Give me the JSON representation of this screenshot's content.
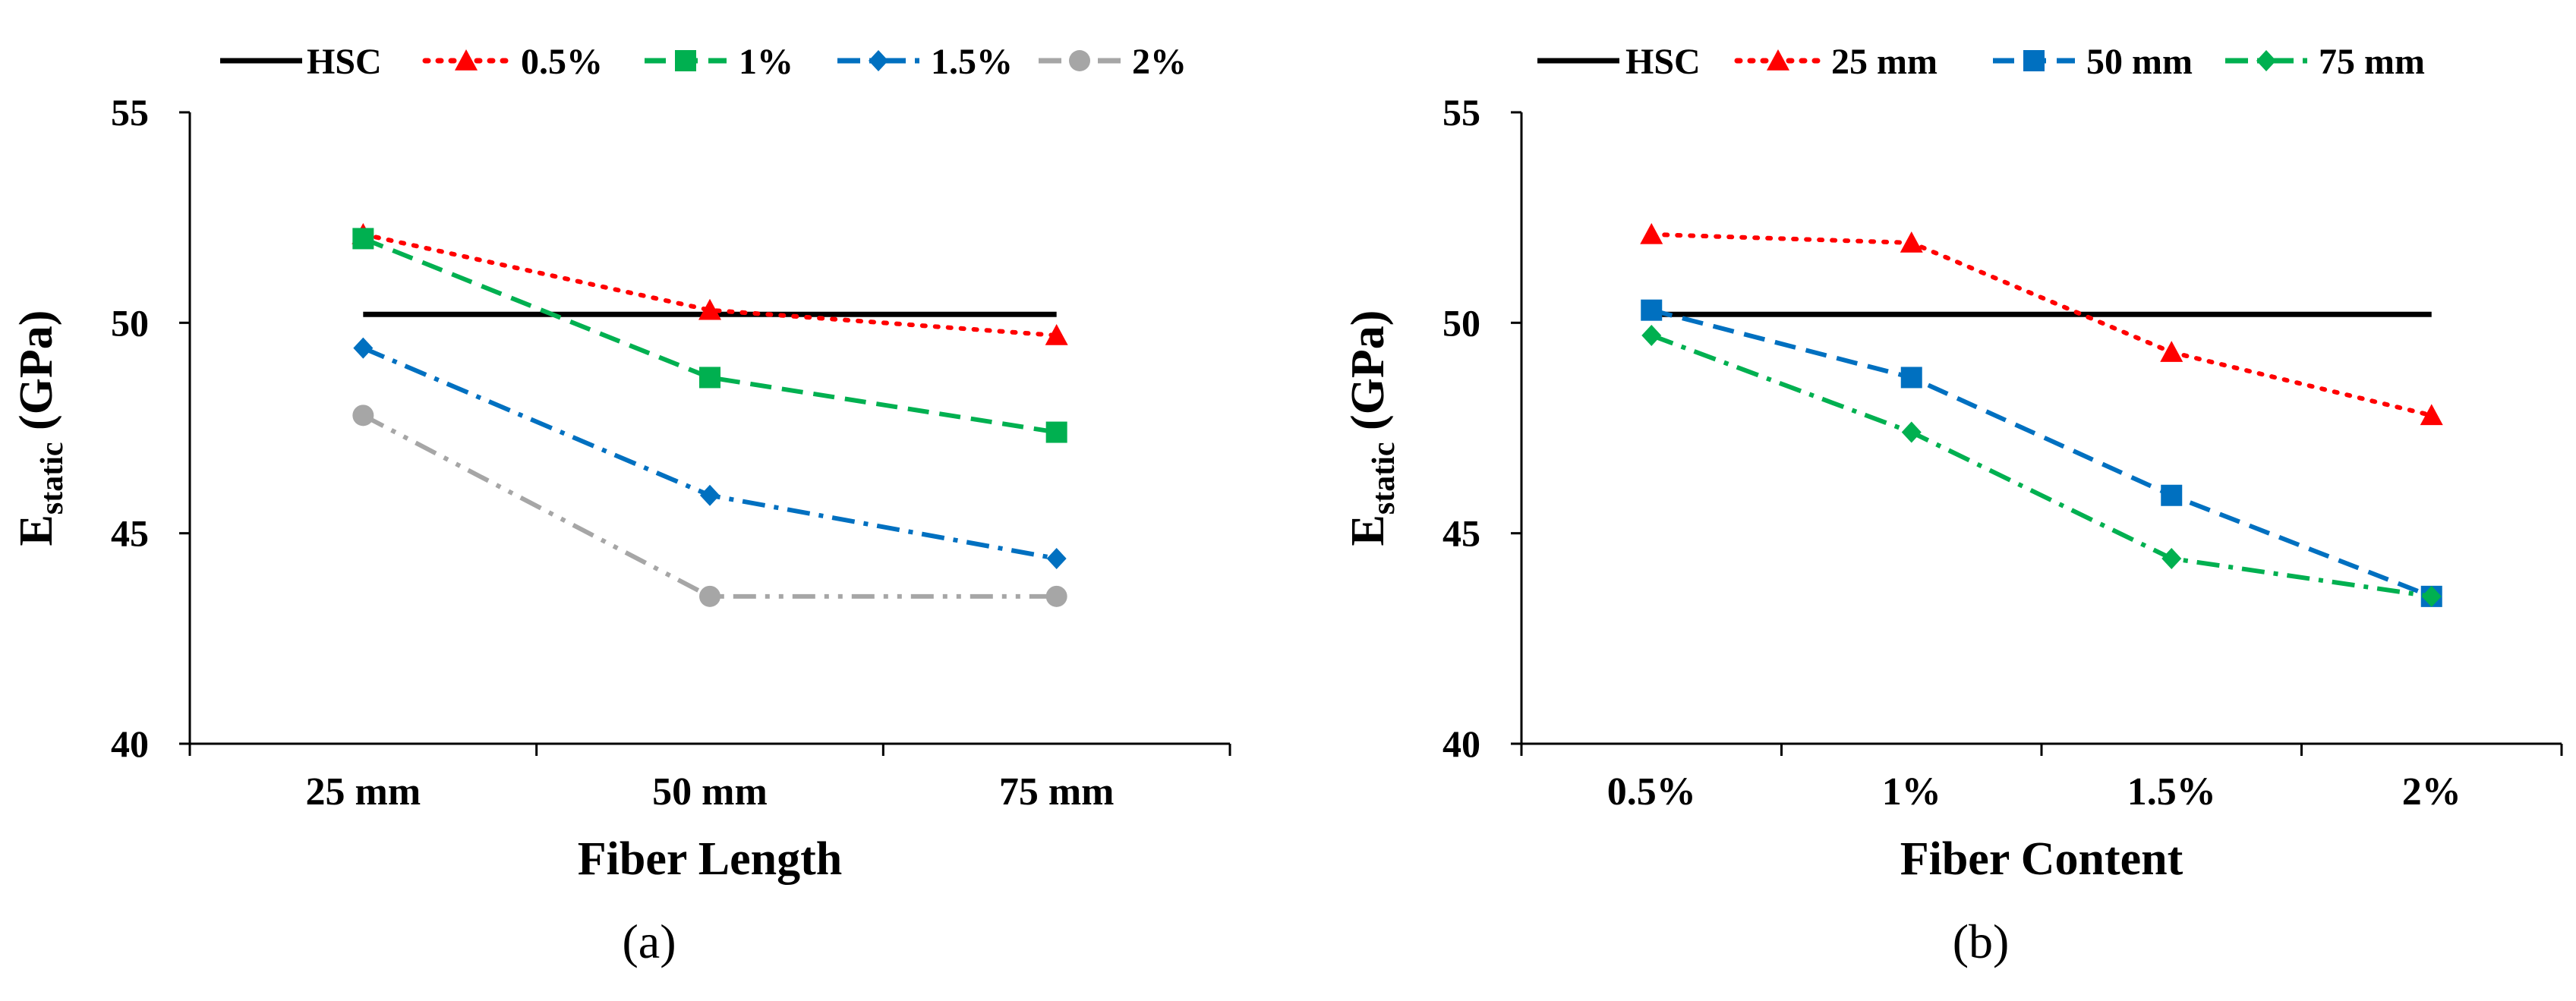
{
  "chart_data": [
    {
      "type": "line",
      "panel_label": "(a)",
      "xlabel": "Fiber Length",
      "ylabel_main": "E",
      "ylabel_sub": "static",
      "ylabel_unit": " (GPa)",
      "categories": [
        "25 mm",
        "50 mm",
        "75 mm"
      ],
      "ylim": [
        40,
        55
      ],
      "yticks": [
        40,
        45,
        50,
        55
      ],
      "legend": "top",
      "series": [
        {
          "name": "HSC",
          "values": [
            50.2,
            50.2,
            50.2
          ],
          "color": "#000000",
          "dash": "solid",
          "marker": "none"
        },
        {
          "name": "0.5%",
          "values": [
            52.1,
            50.3,
            49.7
          ],
          "color": "#ff0000",
          "dash": "dot",
          "marker": "triangle"
        },
        {
          "name": "1%",
          "values": [
            52.0,
            48.7,
            47.4
          ],
          "color": "#00b050",
          "dash": "dash",
          "marker": "square"
        },
        {
          "name": "1.5%",
          "values": [
            49.4,
            45.9,
            44.4
          ],
          "color": "#0070c0",
          "dash": "dashdot",
          "marker": "diamond"
        },
        {
          "name": "2%",
          "values": [
            47.8,
            43.5,
            43.5
          ],
          "color": "#a6a6a6",
          "dash": "dashdotdot",
          "marker": "circle"
        }
      ]
    },
    {
      "type": "line",
      "panel_label": "(b)",
      "xlabel": "Fiber Content",
      "ylabel_main": "E",
      "ylabel_sub": "static",
      "ylabel_unit": " (GPa)",
      "categories": [
        "0.5%",
        "1%",
        "1.5%",
        "2%"
      ],
      "ylim": [
        40,
        55
      ],
      "yticks": [
        40,
        45,
        50,
        55
      ],
      "legend": "top",
      "series": [
        {
          "name": "HSC",
          "values": [
            50.2,
            50.2,
            50.2,
            50.2
          ],
          "color": "#000000",
          "dash": "solid",
          "marker": "none"
        },
        {
          "name": "25 mm",
          "values": [
            52.1,
            51.9,
            49.3,
            47.8
          ],
          "color": "#ff0000",
          "dash": "dot",
          "marker": "triangle"
        },
        {
          "name": "50 mm",
          "values": [
            50.3,
            48.7,
            45.9,
            43.5
          ],
          "color": "#0070c0",
          "dash": "dash",
          "marker": "square"
        },
        {
          "name": "75 mm",
          "values": [
            49.7,
            47.4,
            44.4,
            43.5
          ],
          "color": "#00b050",
          "dash": "dashdot",
          "marker": "diamond"
        }
      ]
    }
  ]
}
